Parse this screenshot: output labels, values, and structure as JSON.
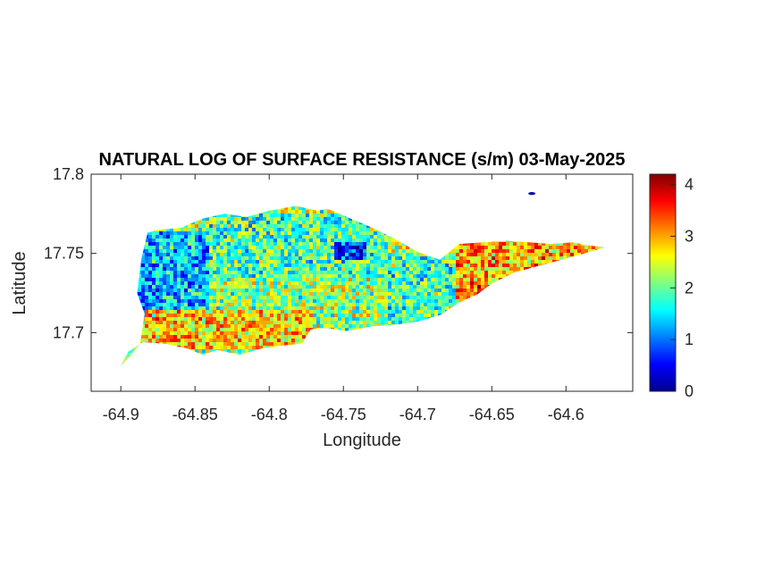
{
  "chart_data": {
    "type": "heatmap",
    "title": "NATURAL LOG OF SURFACE RESISTANCE (s/m) 03-May-2025",
    "xlabel": "Longitude",
    "ylabel": "Latitude",
    "xlim": [
      -64.92,
      -64.555
    ],
    "ylim": [
      17.663,
      17.8
    ],
    "xticks": [
      -64.9,
      -64.85,
      -64.8,
      -64.75,
      -64.7,
      -64.65,
      -64.6
    ],
    "xtick_labels": [
      "-64.9",
      "-64.85",
      "-64.8",
      "-64.75",
      "-64.7",
      "-64.65",
      "-64.6"
    ],
    "yticks": [
      17.7,
      17.75,
      17.8
    ],
    "ytick_labels": [
      "17.7",
      "17.75",
      "17.8"
    ],
    "grid": false,
    "colormap": "jet",
    "colorbar": {
      "range": [
        0,
        4.2
      ],
      "ticks": [
        0,
        1,
        2,
        3,
        4
      ],
      "tick_labels": [
        "0",
        "1",
        "2",
        "3",
        "4"
      ]
    },
    "coast_outline": {
      "lon": [
        -64.9,
        -64.895,
        -64.887,
        -64.884,
        -64.889,
        -64.886,
        -64.882,
        -64.875,
        -64.86,
        -64.845,
        -64.83,
        -64.815,
        -64.8,
        -64.782,
        -64.768,
        -64.76,
        -64.745,
        -64.73,
        -64.715,
        -64.7,
        -64.685,
        -64.672,
        -64.655,
        -64.64,
        -64.625,
        -64.61,
        -64.595,
        -64.585,
        -64.574,
        -64.58,
        -64.595,
        -64.615,
        -64.635,
        -64.65,
        -64.66,
        -64.672,
        -64.685,
        -64.7,
        -64.715,
        -64.73,
        -64.748,
        -64.762,
        -64.772,
        -64.778,
        -64.79,
        -64.805,
        -64.82,
        -64.835,
        -64.845,
        -64.855,
        -64.87,
        -64.885,
        -64.895,
        -64.9
      ],
      "lat": [
        17.679,
        17.684,
        17.693,
        17.712,
        17.725,
        17.747,
        17.763,
        17.765,
        17.766,
        17.772,
        17.775,
        17.773,
        17.777,
        17.78,
        17.777,
        17.778,
        17.772,
        17.766,
        17.759,
        17.751,
        17.746,
        17.756,
        17.757,
        17.758,
        17.757,
        17.756,
        17.757,
        17.755,
        17.754,
        17.752,
        17.748,
        17.743,
        17.738,
        17.731,
        17.724,
        17.719,
        17.711,
        17.707,
        17.705,
        17.704,
        17.701,
        17.703,
        17.702,
        17.693,
        17.692,
        17.69,
        17.686,
        17.689,
        17.686,
        17.69,
        17.693,
        17.694,
        17.688,
        17.679
      ]
    },
    "value_zones": [
      {
        "region": "western interior",
        "lon_range": [
          -64.895,
          -64.84
        ],
        "lat_range": [
          17.71,
          17.765
        ],
        "value": 1.3
      },
      {
        "region": "central north",
        "lon_range": [
          -64.84,
          -64.72
        ],
        "lat_range": [
          17.735,
          17.775
        ],
        "value": 1.9
      },
      {
        "region": "central pond area",
        "lon_range": [
          -64.755,
          -64.735
        ],
        "lat_range": [
          17.745,
          17.757
        ],
        "value": 0.8
      },
      {
        "region": "southern lowlands",
        "lon_range": [
          -64.885,
          -64.77
        ],
        "lat_range": [
          17.69,
          17.715
        ],
        "value": 2.8
      },
      {
        "region": "east central",
        "lon_range": [
          -64.72,
          -64.675
        ],
        "lat_range": [
          17.705,
          17.75
        ],
        "value": 1.9
      },
      {
        "region": "east end",
        "lon_range": [
          -64.675,
          -64.575
        ],
        "lat_range": [
          17.715,
          17.758
        ],
        "value": 2.9
      },
      {
        "region": "east end hotspot",
        "lon_range": [
          -64.66,
          -64.645
        ],
        "lat_range": [
          17.722,
          17.73
        ],
        "value": 3.8
      }
    ],
    "small_features": [
      {
        "lon": -64.623,
        "lat": 17.7878,
        "value": 0.2
      }
    ]
  }
}
